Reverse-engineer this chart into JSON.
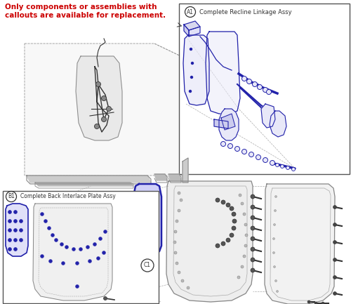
{
  "bg_color": "#ffffff",
  "warning_line1": "Only components or assemblies with",
  "warning_line2": "callouts are available for replacement.",
  "warning_color": "#cc0000",
  "box_A1_label": "A1",
  "box_A1_title": "Complete Recline Linkage Assy",
  "box_B1_label": "B1",
  "box_B1_title": "Complete Back Interlace Plate Assy",
  "callout_C1": "C1",
  "blue": "#2222aa",
  "gray": "#777777",
  "dark": "#333333",
  "lightblue_fill": "#e8e8f8",
  "lightgray_fill": "#eeeeee"
}
